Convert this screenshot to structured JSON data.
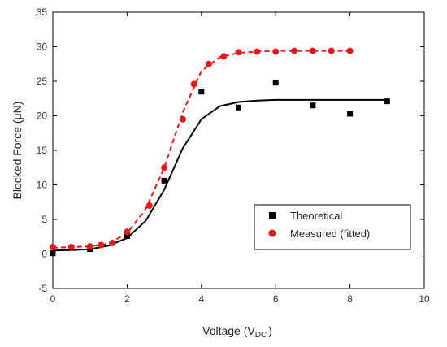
{
  "chart_data": {
    "type": "scatter",
    "title": "",
    "xlabel": "Voltage (V",
    "xlabel_sub": "DC",
    "xlabel_end": ")",
    "ylabel": "Blocked Force (μN)",
    "xlim": [
      0,
      10
    ],
    "ylim": [
      -5,
      35
    ],
    "xticks": [
      0,
      2,
      4,
      6,
      8,
      10
    ],
    "yticks": [
      -5,
      0,
      5,
      10,
      15,
      20,
      25,
      30,
      35
    ],
    "grid": false,
    "legend_position": "bottom-right",
    "series": [
      {
        "name": "Theoretical",
        "color": "#000000",
        "marker": "square",
        "points": [
          [
            0,
            0.1
          ],
          [
            1,
            0.7
          ],
          [
            2,
            2.6
          ],
          [
            3,
            10.6
          ],
          [
            4,
            23.5
          ],
          [
            5,
            21.2
          ],
          [
            6,
            24.8
          ],
          [
            7,
            21.5
          ],
          [
            8,
            20.3
          ],
          [
            9,
            22.1
          ]
        ],
        "fit_line": {
          "style": "solid",
          "points": [
            [
              0,
              0.5
            ],
            [
              0.5,
              0.55
            ],
            [
              1,
              0.7
            ],
            [
              1.5,
              1.2
            ],
            [
              2,
              2.3
            ],
            [
              2.5,
              4.8
            ],
            [
              3,
              9.3
            ],
            [
              3.5,
              15.3
            ],
            [
              4,
              19.5
            ],
            [
              4.5,
              21.4
            ],
            [
              5,
              22.0
            ],
            [
              5.5,
              22.2
            ],
            [
              6,
              22.3
            ],
            [
              7,
              22.3
            ],
            [
              8,
              22.3
            ],
            [
              9,
              22.3
            ]
          ]
        }
      },
      {
        "name": "Measured (fitted)",
        "color": "#e31a1c",
        "marker": "circle",
        "points": [
          [
            0,
            1.0
          ],
          [
            0.5,
            1.0
          ],
          [
            1,
            1.1
          ],
          [
            1.3,
            1.3
          ],
          [
            1.6,
            1.6
          ],
          [
            2,
            3.2
          ],
          [
            2.6,
            7.0
          ],
          [
            3,
            12.5
          ],
          [
            3.5,
            19.5
          ],
          [
            3.8,
            24.6
          ],
          [
            4.2,
            27.5
          ],
          [
            4.6,
            28.6
          ],
          [
            5,
            29.2
          ],
          [
            5.5,
            29.3
          ],
          [
            6,
            29.3
          ],
          [
            6.5,
            29.4
          ],
          [
            7,
            29.4
          ],
          [
            7.5,
            29.4
          ],
          [
            8,
            29.4
          ]
        ],
        "fit_line": {
          "style": "dashed",
          "points": [
            [
              0,
              0.9
            ],
            [
              0.5,
              1.0
            ],
            [
              1,
              1.1
            ],
            [
              1.5,
              1.5
            ],
            [
              2,
              3.0
            ],
            [
              2.5,
              6.5
            ],
            [
              3,
              12.5
            ],
            [
              3.5,
              20.5
            ],
            [
              4,
              26.5
            ],
            [
              4.5,
              28.5
            ],
            [
              5,
              29.1
            ],
            [
              5.5,
              29.3
            ],
            [
              6,
              29.4
            ],
            [
              7,
              29.4
            ],
            [
              8,
              29.4
            ]
          ]
        }
      }
    ]
  }
}
